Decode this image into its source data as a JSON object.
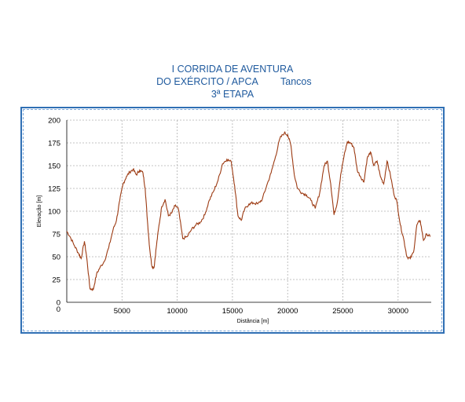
{
  "title": {
    "line1": "I CORRIDA DE AVENTURA",
    "line2": "DO EXÉRCITO / APCA",
    "location": "Tancos",
    "line3": "3ª ETAPA"
  },
  "colors": {
    "title": "#1f5a9e",
    "frame": "#2f6fb4",
    "line": "#9c3a12",
    "grid": "#b0b0b0"
  },
  "chart_data": {
    "type": "line",
    "xlabel": "Distância [m]",
    "ylabel": "Elevação [m]",
    "xlim": [
      0,
      33000
    ],
    "ylim": [
      0,
      200
    ],
    "x_ticks": [
      "0",
      "5000",
      "10000",
      "15000",
      "20000",
      "25000",
      "30000"
    ],
    "y_ticks": [
      "0",
      "25",
      "50",
      "75",
      "100",
      "125",
      "150",
      "175",
      "200"
    ],
    "x_tick_values": [
      0,
      5000,
      10000,
      15000,
      20000,
      25000,
      30000
    ],
    "y_tick_values": [
      0,
      25,
      50,
      75,
      100,
      125,
      150,
      175,
      200
    ],
    "grid": true,
    "series": [
      {
        "x": [
          0,
          300,
          700,
          1100,
          1300,
          1600,
          1800,
          2100,
          2400,
          2700,
          3000,
          3400,
          3800,
          4200,
          4500,
          4800,
          5100,
          5400,
          5700,
          6000,
          6300,
          6600,
          6900,
          7100,
          7300,
          7500,
          7700,
          7900,
          8100,
          8300,
          8600,
          8900,
          9200,
          9500,
          9800,
          10100,
          10500,
          10900,
          11300,
          11700,
          12100,
          12500,
          12900,
          13300,
          13700,
          14100,
          14500,
          14900,
          15200,
          15500,
          15800,
          16100,
          16500,
          16900,
          17300,
          17700,
          18100,
          18500,
          18900,
          19300,
          19700,
          20000,
          20300,
          20600,
          20900,
          21300,
          21700,
          22100,
          22500,
          22900,
          23300,
          23600,
          23900,
          24200,
          24500,
          24800,
          25100,
          25400,
          25700,
          26000,
          26300,
          26600,
          26900,
          27200,
          27500,
          27800,
          28100,
          28400,
          28700,
          29000,
          29300,
          29600,
          29900,
          30200,
          30500,
          30800,
          31100,
          31400,
          31700,
          32000,
          32300,
          32600,
          32900
        ],
        "y": [
          78,
          72,
          62,
          53,
          48,
          67,
          50,
          15,
          14,
          31,
          38,
          45,
          60,
          80,
          90,
          112,
          130,
          138,
          143,
          146,
          140,
          145,
          142,
          125,
          90,
          60,
          40,
          38,
          60,
          80,
          105,
          113,
          95,
          98,
          106,
          103,
          70,
          72,
          80,
          85,
          88,
          96,
          112,
          122,
          134,
          152,
          157,
          154,
          128,
          95,
          90,
          102,
          108,
          109,
          108,
          113,
          128,
          142,
          160,
          180,
          186,
          184,
          172,
          140,
          125,
          120,
          118,
          112,
          103,
          120,
          150,
          155,
          130,
          96,
          110,
          140,
          160,
          176,
          175,
          170,
          145,
          138,
          132,
          158,
          165,
          150,
          155,
          138,
          130,
          155,
          140,
          120,
          110,
          85,
          70,
          50,
          48,
          55,
          85,
          90,
          68,
          75,
          72
        ]
      }
    ]
  }
}
